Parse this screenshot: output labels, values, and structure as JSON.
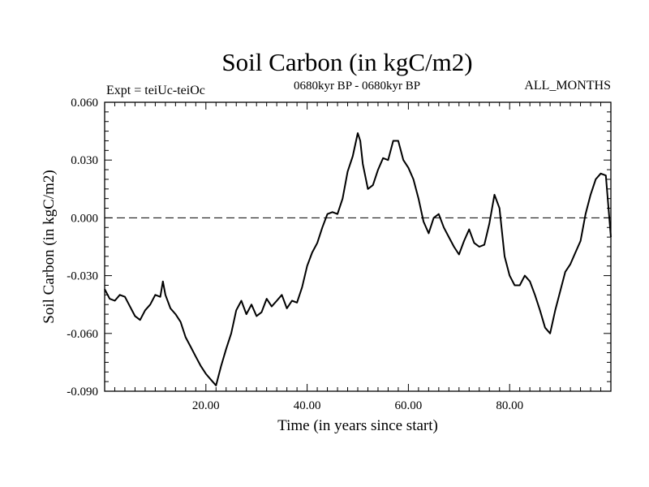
{
  "chart_data": {
    "type": "line",
    "title": "Soil Carbon (in kgC/m2)",
    "subtitle": "0680kyr BP - 0680kyr BP",
    "left_label": "Expt = teiUc-teiOc",
    "right_label": "ALL_MONTHS",
    "xlabel": "Time (in years since start)",
    "ylabel": "Soil Carbon (in kgC/m2)",
    "xlim": [
      0,
      100
    ],
    "ylim": [
      -0.09,
      0.06
    ],
    "x_ticks": [
      20,
      40,
      60,
      80
    ],
    "x_tick_labels": [
      "20.00",
      "40.00",
      "60.00",
      "80.00"
    ],
    "y_ticks": [
      -0.09,
      -0.06,
      -0.03,
      0.0,
      0.03,
      0.06
    ],
    "y_tick_labels": [
      "-0.090",
      "-0.060",
      "-0.030",
      "0.000",
      "0.030",
      "0.060"
    ],
    "reference_line": {
      "y": 0.0,
      "style": "dashed"
    },
    "series": [
      {
        "name": "Soil Carbon",
        "color": "#000000",
        "points": [
          [
            0,
            -0.037
          ],
          [
            1,
            -0.042
          ],
          [
            2,
            -0.043
          ],
          [
            3,
            -0.04
          ],
          [
            4,
            -0.041
          ],
          [
            5,
            -0.046
          ],
          [
            6,
            -0.051
          ],
          [
            7,
            -0.053
          ],
          [
            8,
            -0.048
          ],
          [
            9,
            -0.045
          ],
          [
            10,
            -0.04
          ],
          [
            11,
            -0.041
          ],
          [
            11.5,
            -0.033
          ],
          [
            12,
            -0.04
          ],
          [
            13,
            -0.047
          ],
          [
            14,
            -0.05
          ],
          [
            15,
            -0.054
          ],
          [
            16,
            -0.062
          ],
          [
            17,
            -0.067
          ],
          [
            18,
            -0.072
          ],
          [
            19,
            -0.077
          ],
          [
            20,
            -0.081
          ],
          [
            21,
            -0.084
          ],
          [
            22,
            -0.087
          ],
          [
            23,
            -0.077
          ],
          [
            24,
            -0.068
          ],
          [
            25,
            -0.06
          ],
          [
            26,
            -0.048
          ],
          [
            27,
            -0.043
          ],
          [
            28,
            -0.05
          ],
          [
            29,
            -0.045
          ],
          [
            30,
            -0.051
          ],
          [
            31,
            -0.049
          ],
          [
            32,
            -0.042
          ],
          [
            33,
            -0.046
          ],
          [
            34,
            -0.043
          ],
          [
            35,
            -0.04
          ],
          [
            36,
            -0.047
          ],
          [
            37,
            -0.043
          ],
          [
            38,
            -0.044
          ],
          [
            39,
            -0.036
          ],
          [
            40,
            -0.025
          ],
          [
            41,
            -0.018
          ],
          [
            42,
            -0.013
          ],
          [
            43,
            -0.005
          ],
          [
            44,
            0.002
          ],
          [
            45,
            0.003
          ],
          [
            46,
            0.002
          ],
          [
            47,
            0.01
          ],
          [
            48,
            0.024
          ],
          [
            49,
            0.032
          ],
          [
            50,
            0.044
          ],
          [
            50.5,
            0.04
          ],
          [
            51,
            0.028
          ],
          [
            52,
            0.015
          ],
          [
            53,
            0.017
          ],
          [
            54,
            0.025
          ],
          [
            55,
            0.031
          ],
          [
            56,
            0.03
          ],
          [
            57,
            0.04
          ],
          [
            58,
            0.04
          ],
          [
            59,
            0.03
          ],
          [
            60,
            0.026
          ],
          [
            61,
            0.02
          ],
          [
            62,
            0.01
          ],
          [
            63,
            -0.002
          ],
          [
            64,
            -0.008
          ],
          [
            65,
            0.0
          ],
          [
            66,
            0.002
          ],
          [
            67,
            -0.005
          ],
          [
            68,
            -0.01
          ],
          [
            69,
            -0.015
          ],
          [
            70,
            -0.019
          ],
          [
            71,
            -0.012
          ],
          [
            72,
            -0.006
          ],
          [
            73,
            -0.013
          ],
          [
            74,
            -0.015
          ],
          [
            75,
            -0.014
          ],
          [
            76,
            -0.003
          ],
          [
            77,
            0.012
          ],
          [
            78,
            0.005
          ],
          [
            79,
            -0.02
          ],
          [
            80,
            -0.03
          ],
          [
            81,
            -0.035
          ],
          [
            82,
            -0.035
          ],
          [
            83,
            -0.03
          ],
          [
            84,
            -0.033
          ],
          [
            85,
            -0.04
          ],
          [
            86,
            -0.048
          ],
          [
            87,
            -0.057
          ],
          [
            88,
            -0.06
          ],
          [
            89,
            -0.048
          ],
          [
            90,
            -0.038
          ],
          [
            91,
            -0.028
          ],
          [
            92,
            -0.024
          ],
          [
            93,
            -0.018
          ],
          [
            94,
            -0.012
          ],
          [
            95,
            0.002
          ],
          [
            96,
            0.012
          ],
          [
            97,
            0.02
          ],
          [
            98,
            0.023
          ],
          [
            99,
            0.022
          ],
          [
            100,
            -0.01
          ]
        ]
      }
    ]
  }
}
